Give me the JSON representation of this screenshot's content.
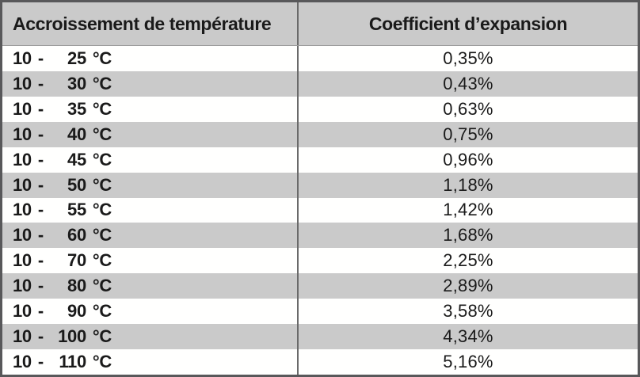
{
  "table": {
    "columns": [
      {
        "label": "Accroissement de température"
      },
      {
        "label": "Coefficient d’expansion"
      }
    ],
    "rows": [
      {
        "start": "10",
        "dash": "-",
        "end": "25",
        "unit": "°C",
        "coefficient": "0,35%"
      },
      {
        "start": "10",
        "dash": "-",
        "end": "30",
        "unit": "°C",
        "coefficient": "0,43%"
      },
      {
        "start": "10",
        "dash": "-",
        "end": "35",
        "unit": "°C",
        "coefficient": "0,63%"
      },
      {
        "start": "10",
        "dash": "-",
        "end": "40",
        "unit": "°C",
        "coefficient": "0,75%"
      },
      {
        "start": "10",
        "dash": "-",
        "end": "45",
        "unit": "°C",
        "coefficient": "0,96%"
      },
      {
        "start": "10",
        "dash": "-",
        "end": "50",
        "unit": "°C",
        "coefficient": "1,18%"
      },
      {
        "start": "10",
        "dash": "-",
        "end": "55",
        "unit": "°C",
        "coefficient": "1,42%"
      },
      {
        "start": "10",
        "dash": "-",
        "end": "60",
        "unit": "°C",
        "coefficient": "1,68%"
      },
      {
        "start": "10",
        "dash": "-",
        "end": "70",
        "unit": "°C",
        "coefficient": "2,25%"
      },
      {
        "start": "10",
        "dash": "-",
        "end": "80",
        "unit": "°C",
        "coefficient": "2,89%"
      },
      {
        "start": "10",
        "dash": "-",
        "end": "90",
        "unit": "°C",
        "coefficient": "3,58%"
      },
      {
        "start": "10",
        "dash": "-",
        "end": "100",
        "unit": "°C",
        "coefficient": "4,34%"
      },
      {
        "start": "10",
        "dash": "-",
        "end": "110",
        "unit": "°C",
        "coefficient": "5,16%"
      }
    ]
  },
  "chart_data": {
    "type": "table",
    "title": "",
    "columns": [
      "Accroissement de température",
      "Coefficient d’expansion"
    ],
    "rows": [
      [
        "10 - 25 °C",
        "0,35%"
      ],
      [
        "10 - 30 °C",
        "0,43%"
      ],
      [
        "10 - 35 °C",
        "0,63%"
      ],
      [
        "10 - 40 °C",
        "0,75%"
      ],
      [
        "10 - 45 °C",
        "0,96%"
      ],
      [
        "10 - 50 °C",
        "1,18%"
      ],
      [
        "10 - 55 °C",
        "1,42%"
      ],
      [
        "10 - 60 °C",
        "1,68%"
      ],
      [
        "10 - 70 °C",
        "2,25%"
      ],
      [
        "10 - 80 °C",
        "2,89%"
      ],
      [
        "10 - 90 °C",
        "3,58%"
      ],
      [
        "10 - 100 °C",
        "4,34%"
      ],
      [
        "10 - 110 °C",
        "5,16%"
      ]
    ],
    "temperature_range_start_c": 10,
    "temperature_range_end_c": [
      25,
      30,
      35,
      40,
      45,
      50,
      55,
      60,
      70,
      80,
      90,
      100,
      110
    ],
    "expansion_coefficient_percent": [
      0.35,
      0.43,
      0.63,
      0.75,
      0.96,
      1.18,
      1.42,
      1.68,
      2.25,
      2.89,
      3.58,
      4.34,
      5.16
    ]
  },
  "colors": {
    "header_bg": "#cacaca",
    "row_alt_bg": "#cacaca",
    "row_bg": "#fffffe",
    "outer_border": "#58585a",
    "column_divider": "#6a6a6a",
    "text": "#1a1a1a"
  }
}
